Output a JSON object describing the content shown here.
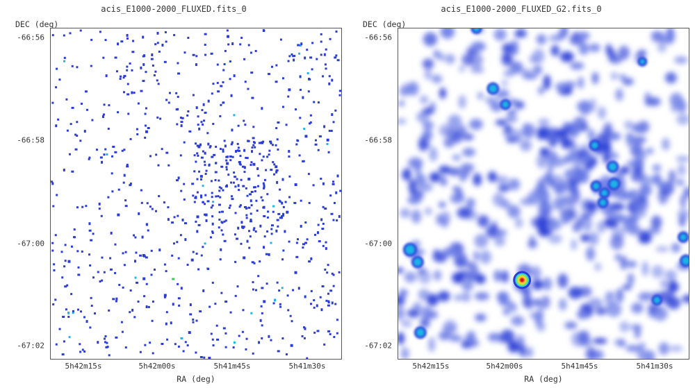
{
  "panels": [
    {
      "title": "acis_E1000-2000_FLUXED.fits_0",
      "y_axis_label": "DEC (deg)",
      "x_axis_label": "RA (deg)",
      "y_ticks": [
        "-66:56",
        "-66:58",
        "-67:00",
        "-67:02"
      ],
      "x_ticks": [
        "5h42m15s",
        "5h42m00s",
        "5h41m45s",
        "5h41m30s"
      ],
      "image_style": "sparse pixel counts"
    },
    {
      "title": "acis_E1000-2000_FLUXED_G2.fits_0",
      "y_axis_label": "DEC (deg)",
      "x_axis_label": "RA (deg)",
      "y_ticks": [
        "-66:56",
        "-66:58",
        "-67:00",
        "-67:02"
      ],
      "x_ticks": [
        "5h42m15s",
        "5h42m00s",
        "5h41m45s",
        "5h41m30s"
      ],
      "image_style": "gaussian smoothed"
    }
  ],
  "colors": {
    "low": "#2a3bd8",
    "mid": "#1fb3e8",
    "high": "#c81818",
    "frame": "#555555"
  }
}
